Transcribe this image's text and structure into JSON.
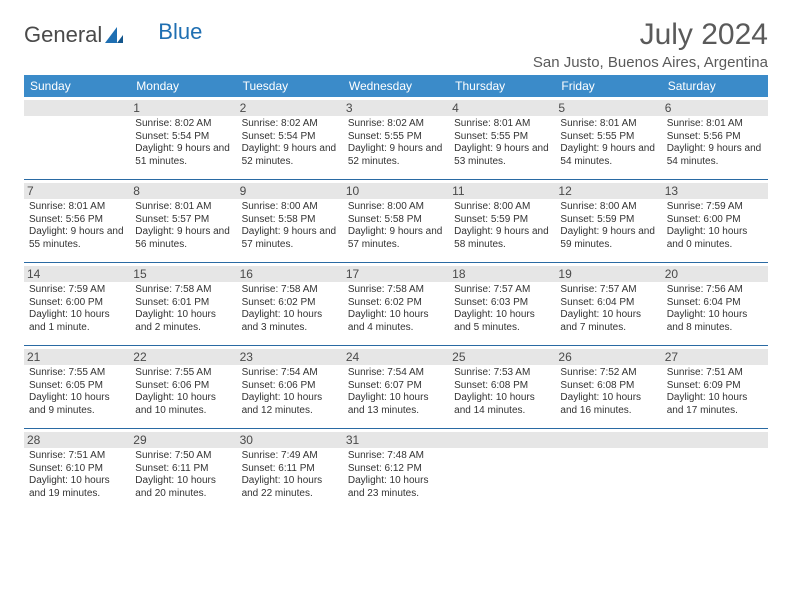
{
  "logo": {
    "text1": "General",
    "text2": "Blue"
  },
  "header": {
    "month_title": "July 2024",
    "location": "San Justo, Buenos Aires, Argentina"
  },
  "colors": {
    "header_bg": "#3b8bc9",
    "header_text": "#ffffff",
    "week_border": "#2a6aa3",
    "daynum_bg": "#e6e6e6",
    "text": "#333333",
    "title": "#5a5a5a",
    "logo_gray": "#4a4a4a",
    "logo_blue": "#1f6fb2",
    "background": "#ffffff"
  },
  "typography": {
    "title_fontsize": 30,
    "location_fontsize": 15,
    "dayheader_fontsize": 12,
    "daynum_fontsize": 12,
    "info_fontsize": 10
  },
  "weekdays": [
    "Sunday",
    "Monday",
    "Tuesday",
    "Wednesday",
    "Thursday",
    "Friday",
    "Saturday"
  ],
  "weeks": [
    [
      {
        "blank": true
      },
      {
        "num": "1",
        "sunrise": "8:02 AM",
        "sunset": "5:54 PM",
        "daylight": "9 hours and 51 minutes."
      },
      {
        "num": "2",
        "sunrise": "8:02 AM",
        "sunset": "5:54 PM",
        "daylight": "9 hours and 52 minutes."
      },
      {
        "num": "3",
        "sunrise": "8:02 AM",
        "sunset": "5:55 PM",
        "daylight": "9 hours and 52 minutes."
      },
      {
        "num": "4",
        "sunrise": "8:01 AM",
        "sunset": "5:55 PM",
        "daylight": "9 hours and 53 minutes."
      },
      {
        "num": "5",
        "sunrise": "8:01 AM",
        "sunset": "5:55 PM",
        "daylight": "9 hours and 54 minutes."
      },
      {
        "num": "6",
        "sunrise": "8:01 AM",
        "sunset": "5:56 PM",
        "daylight": "9 hours and 54 minutes."
      }
    ],
    [
      {
        "num": "7",
        "sunrise": "8:01 AM",
        "sunset": "5:56 PM",
        "daylight": "9 hours and 55 minutes."
      },
      {
        "num": "8",
        "sunrise": "8:01 AM",
        "sunset": "5:57 PM",
        "daylight": "9 hours and 56 minutes."
      },
      {
        "num": "9",
        "sunrise": "8:00 AM",
        "sunset": "5:58 PM",
        "daylight": "9 hours and 57 minutes."
      },
      {
        "num": "10",
        "sunrise": "8:00 AM",
        "sunset": "5:58 PM",
        "daylight": "9 hours and 57 minutes."
      },
      {
        "num": "11",
        "sunrise": "8:00 AM",
        "sunset": "5:59 PM",
        "daylight": "9 hours and 58 minutes."
      },
      {
        "num": "12",
        "sunrise": "8:00 AM",
        "sunset": "5:59 PM",
        "daylight": "9 hours and 59 minutes."
      },
      {
        "num": "13",
        "sunrise": "7:59 AM",
        "sunset": "6:00 PM",
        "daylight": "10 hours and 0 minutes."
      }
    ],
    [
      {
        "num": "14",
        "sunrise": "7:59 AM",
        "sunset": "6:00 PM",
        "daylight": "10 hours and 1 minute."
      },
      {
        "num": "15",
        "sunrise": "7:58 AM",
        "sunset": "6:01 PM",
        "daylight": "10 hours and 2 minutes."
      },
      {
        "num": "16",
        "sunrise": "7:58 AM",
        "sunset": "6:02 PM",
        "daylight": "10 hours and 3 minutes."
      },
      {
        "num": "17",
        "sunrise": "7:58 AM",
        "sunset": "6:02 PM",
        "daylight": "10 hours and 4 minutes."
      },
      {
        "num": "18",
        "sunrise": "7:57 AM",
        "sunset": "6:03 PM",
        "daylight": "10 hours and 5 minutes."
      },
      {
        "num": "19",
        "sunrise": "7:57 AM",
        "sunset": "6:04 PM",
        "daylight": "10 hours and 7 minutes."
      },
      {
        "num": "20",
        "sunrise": "7:56 AM",
        "sunset": "6:04 PM",
        "daylight": "10 hours and 8 minutes."
      }
    ],
    [
      {
        "num": "21",
        "sunrise": "7:55 AM",
        "sunset": "6:05 PM",
        "daylight": "10 hours and 9 minutes."
      },
      {
        "num": "22",
        "sunrise": "7:55 AM",
        "sunset": "6:06 PM",
        "daylight": "10 hours and 10 minutes."
      },
      {
        "num": "23",
        "sunrise": "7:54 AM",
        "sunset": "6:06 PM",
        "daylight": "10 hours and 12 minutes."
      },
      {
        "num": "24",
        "sunrise": "7:54 AM",
        "sunset": "6:07 PM",
        "daylight": "10 hours and 13 minutes."
      },
      {
        "num": "25",
        "sunrise": "7:53 AM",
        "sunset": "6:08 PM",
        "daylight": "10 hours and 14 minutes."
      },
      {
        "num": "26",
        "sunrise": "7:52 AM",
        "sunset": "6:08 PM",
        "daylight": "10 hours and 16 minutes."
      },
      {
        "num": "27",
        "sunrise": "7:51 AM",
        "sunset": "6:09 PM",
        "daylight": "10 hours and 17 minutes."
      }
    ],
    [
      {
        "num": "28",
        "sunrise": "7:51 AM",
        "sunset": "6:10 PM",
        "daylight": "10 hours and 19 minutes."
      },
      {
        "num": "29",
        "sunrise": "7:50 AM",
        "sunset": "6:11 PM",
        "daylight": "10 hours and 20 minutes."
      },
      {
        "num": "30",
        "sunrise": "7:49 AM",
        "sunset": "6:11 PM",
        "daylight": "10 hours and 22 minutes."
      },
      {
        "num": "31",
        "sunrise": "7:48 AM",
        "sunset": "6:12 PM",
        "daylight": "10 hours and 23 minutes."
      },
      {
        "blank": true
      },
      {
        "blank": true
      },
      {
        "blank": true
      }
    ]
  ]
}
